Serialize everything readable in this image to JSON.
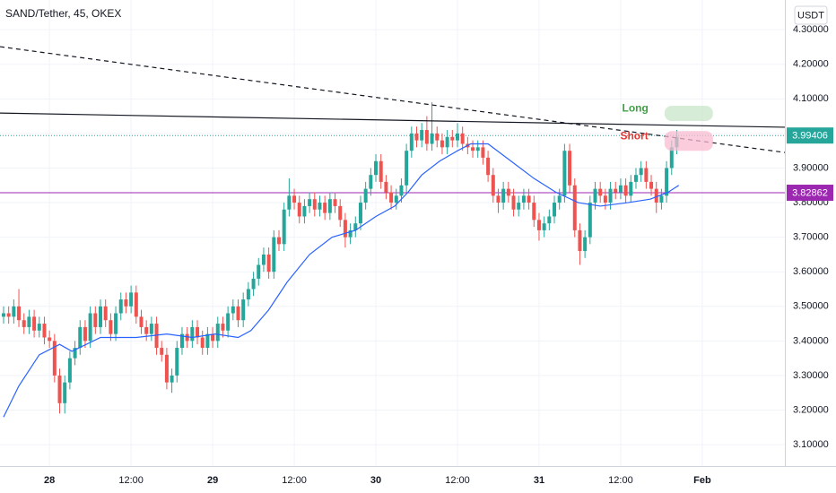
{
  "chart_data": {
    "type": "candlestick",
    "title": "SAND/Tether, 45, OKEX",
    "currency": "USDT",
    "up_color": "#26a69a",
    "down_color": "#ef5350",
    "grid": true,
    "xlim": [
      -9.7,
      144.2
    ],
    "ylim": [
      3.038,
      4.386
    ],
    "xticks": [
      {
        "value": 0,
        "label": "28"
      },
      {
        "value": 16,
        "label": "12:00"
      },
      {
        "value": 32,
        "label": "29"
      },
      {
        "value": 48,
        "label": "12:00"
      },
      {
        "value": 64,
        "label": "30"
      },
      {
        "value": 80,
        "label": "12:00"
      },
      {
        "value": 96,
        "label": "31"
      },
      {
        "value": 112,
        "label": "12:00"
      },
      {
        "value": 128,
        "label": "Feb"
      }
    ],
    "yticks": [
      {
        "value": 3.1,
        "label": "3.10000"
      },
      {
        "value": 3.2,
        "label": "3.20000"
      },
      {
        "value": 3.3,
        "label": "3.30000"
      },
      {
        "value": 3.4,
        "label": "3.40000"
      },
      {
        "value": 3.5,
        "label": "3.50000"
      },
      {
        "value": 3.6,
        "label": "3.60000"
      },
      {
        "value": 3.7,
        "label": "3.70000"
      },
      {
        "value": 3.8,
        "label": "3.80000"
      },
      {
        "value": 3.9,
        "label": "3.90000"
      },
      {
        "value": 4.0,
        "label": "4.00000"
      },
      {
        "value": 4.1,
        "label": "4.10000"
      },
      {
        "value": 4.2,
        "label": "4.20000"
      },
      {
        "value": 4.3,
        "label": "4.30000"
      }
    ],
    "x": [
      -9,
      -8,
      -7,
      -6,
      -5,
      -4,
      -3,
      -2,
      -1,
      0,
      1,
      2,
      3,
      4,
      5,
      6,
      7,
      8,
      9,
      10,
      11,
      12,
      13,
      14,
      15,
      16,
      17,
      18,
      19,
      20,
      21,
      22,
      23,
      24,
      25,
      26,
      27,
      28,
      29,
      30,
      31,
      32,
      33,
      34,
      35,
      36,
      37,
      38,
      39,
      40,
      41,
      42,
      43,
      44,
      45,
      46,
      47,
      48,
      49,
      50,
      51,
      52,
      53,
      54,
      55,
      56,
      57,
      58,
      59,
      60,
      61,
      62,
      63,
      64,
      65,
      66,
      67,
      68,
      69,
      70,
      71,
      72,
      73,
      74,
      75,
      76,
      77,
      78,
      79,
      80,
      81,
      82,
      83,
      84,
      85,
      86,
      87,
      88,
      89,
      90,
      91,
      92,
      93,
      94,
      95,
      96,
      97,
      98,
      99,
      100,
      101,
      102,
      103,
      104,
      105,
      106,
      107,
      108,
      109,
      110,
      111,
      112,
      113,
      114,
      115,
      116,
      117,
      118,
      119,
      120,
      121,
      122,
      123
    ],
    "open": [
      3.47,
      3.48,
      3.47,
      3.5,
      3.46,
      3.44,
      3.47,
      3.43,
      3.45,
      3.41,
      3.4,
      3.3,
      3.22,
      3.28,
      3.35,
      3.38,
      3.44,
      3.4,
      3.48,
      3.44,
      3.5,
      3.46,
      3.42,
      3.48,
      3.52,
      3.5,
      3.54,
      3.47,
      3.44,
      3.42,
      3.45,
      3.38,
      3.36,
      3.28,
      3.3,
      3.38,
      3.42,
      3.4,
      3.44,
      3.41,
      3.38,
      3.42,
      3.4,
      3.45,
      3.43,
      3.48,
      3.5,
      3.46,
      3.52,
      3.55,
      3.58,
      3.62,
      3.65,
      3.6,
      3.7,
      3.68,
      3.78,
      3.82,
      3.8,
      3.76,
      3.79,
      3.81,
      3.78,
      3.8,
      3.77,
      3.81,
      3.79,
      3.75,
      3.7,
      3.72,
      3.74,
      3.8,
      3.84,
      3.88,
      3.92,
      3.86,
      3.83,
      3.8,
      3.82,
      3.85,
      3.95,
      4.0,
      3.98,
      4.01,
      3.97,
      4.0,
      3.98,
      3.96,
      3.99,
      3.98,
      4.0,
      3.97,
      3.96,
      3.95,
      3.96,
      3.93,
      3.88,
      3.82,
      3.8,
      3.84,
      3.82,
      3.78,
      3.8,
      3.82,
      3.8,
      3.75,
      3.72,
      3.74,
      3.76,
      3.8,
      3.82,
      3.95,
      3.85,
      3.72,
      3.66,
      3.7,
      3.8,
      3.84,
      3.82,
      3.8,
      3.84,
      3.83,
      3.85,
      3.82,
      3.86,
      3.88,
      3.9,
      3.86,
      3.84,
      3.8,
      3.82,
      3.9,
      3.96
    ],
    "high": [
      3.5,
      3.5,
      3.52,
      3.55,
      3.48,
      3.49,
      3.49,
      3.47,
      3.47,
      3.43,
      3.42,
      3.32,
      3.3,
      3.37,
      3.4,
      3.46,
      3.46,
      3.5,
      3.5,
      3.52,
      3.52,
      3.48,
      3.5,
      3.54,
      3.54,
      3.56,
      3.56,
      3.49,
      3.46,
      3.47,
      3.47,
      3.4,
      3.38,
      3.32,
      3.4,
      3.44,
      3.44,
      3.46,
      3.46,
      3.43,
      3.44,
      3.44,
      3.47,
      3.47,
      3.5,
      3.52,
      3.52,
      3.54,
      3.57,
      3.6,
      3.64,
      3.67,
      3.67,
      3.72,
      3.72,
      3.8,
      3.87,
      3.84,
      3.82,
      3.81,
      3.83,
      3.83,
      3.82,
      3.82,
      3.83,
      3.83,
      3.81,
      3.77,
      3.74,
      3.76,
      3.82,
      3.86,
      3.9,
      3.94,
      3.94,
      3.88,
      3.85,
      3.84,
      3.87,
      3.97,
      4.02,
      4.02,
      4.03,
      4.05,
      4.09,
      4.02,
      4.0,
      4.01,
      4.01,
      4.03,
      4.02,
      3.99,
      3.98,
      3.98,
      3.98,
      3.95,
      3.9,
      3.84,
      3.86,
      3.86,
      3.84,
      3.82,
      3.84,
      3.84,
      3.82,
      3.77,
      3.76,
      3.78,
      3.82,
      3.84,
      3.97,
      3.97,
      3.87,
      3.74,
      3.72,
      3.82,
      3.86,
      3.86,
      3.84,
      3.86,
      3.86,
      3.87,
      3.87,
      3.88,
      3.9,
      3.92,
      3.92,
      3.88,
      3.86,
      3.84,
      3.92,
      3.98,
      4.01
    ],
    "low": [
      3.45,
      3.45,
      3.45,
      3.44,
      3.42,
      3.42,
      3.41,
      3.41,
      3.39,
      3.38,
      3.28,
      3.19,
      3.19,
      3.26,
      3.33,
      3.36,
      3.38,
      3.38,
      3.42,
      3.42,
      3.44,
      3.4,
      3.4,
      3.46,
      3.48,
      3.48,
      3.45,
      3.42,
      3.4,
      3.4,
      3.36,
      3.34,
      3.26,
      3.25,
      3.28,
      3.36,
      3.38,
      3.38,
      3.39,
      3.36,
      3.36,
      3.38,
      3.38,
      3.41,
      3.41,
      3.46,
      3.44,
      3.44,
      3.5,
      3.53,
      3.56,
      3.6,
      3.58,
      3.58,
      3.66,
      3.66,
      3.76,
      3.78,
      3.74,
      3.74,
      3.77,
      3.76,
      3.76,
      3.75,
      3.75,
      3.77,
      3.73,
      3.67,
      3.68,
      3.7,
      3.72,
      3.78,
      3.82,
      3.86,
      3.84,
      3.81,
      3.78,
      3.78,
      3.8,
      3.83,
      3.93,
      3.96,
      3.96,
      3.95,
      3.95,
      3.96,
      3.94,
      3.94,
      3.96,
      3.96,
      3.95,
      3.94,
      3.93,
      3.93,
      3.91,
      3.86,
      3.8,
      3.77,
      3.78,
      3.8,
      3.76,
      3.76,
      3.78,
      3.78,
      3.73,
      3.69,
      3.7,
      3.72,
      3.74,
      3.78,
      3.8,
      3.83,
      3.7,
      3.62,
      3.64,
      3.68,
      3.78,
      3.8,
      3.78,
      3.78,
      3.81,
      3.81,
      3.8,
      3.8,
      3.84,
      3.86,
      3.84,
      3.82,
      3.77,
      3.78,
      3.8,
      3.88,
      3.94
    ],
    "close": [
      3.48,
      3.47,
      3.5,
      3.46,
      3.44,
      3.47,
      3.43,
      3.45,
      3.41,
      3.4,
      3.3,
      3.22,
      3.28,
      3.35,
      3.38,
      3.44,
      3.4,
      3.48,
      3.44,
      3.5,
      3.46,
      3.42,
      3.48,
      3.52,
      3.5,
      3.54,
      3.47,
      3.44,
      3.42,
      3.45,
      3.38,
      3.36,
      3.28,
      3.3,
      3.38,
      3.42,
      3.4,
      3.44,
      3.41,
      3.38,
      3.42,
      3.4,
      3.45,
      3.43,
      3.48,
      3.5,
      3.46,
      3.52,
      3.55,
      3.58,
      3.62,
      3.65,
      3.6,
      3.7,
      3.68,
      3.78,
      3.82,
      3.8,
      3.76,
      3.79,
      3.81,
      3.78,
      3.8,
      3.77,
      3.81,
      3.79,
      3.75,
      3.7,
      3.72,
      3.74,
      3.8,
      3.84,
      3.88,
      3.92,
      3.86,
      3.83,
      3.8,
      3.82,
      3.85,
      3.95,
      4.0,
      3.98,
      4.01,
      3.97,
      4.0,
      3.98,
      3.96,
      3.99,
      3.98,
      4.0,
      3.97,
      3.96,
      3.95,
      3.96,
      3.93,
      3.88,
      3.82,
      3.8,
      3.84,
      3.82,
      3.78,
      3.8,
      3.82,
      3.8,
      3.75,
      3.72,
      3.74,
      3.76,
      3.8,
      3.82,
      3.95,
      3.85,
      3.72,
      3.66,
      3.7,
      3.8,
      3.84,
      3.82,
      3.8,
      3.84,
      3.83,
      3.85,
      3.82,
      3.86,
      3.88,
      3.9,
      3.86,
      3.84,
      3.8,
      3.82,
      3.9,
      3.96,
      3.99
    ],
    "moving_average": {
      "color": "#2962ff",
      "x": [
        -9,
        -6,
        -2,
        2,
        4.4,
        10,
        17,
        23,
        28,
        32.5,
        37,
        39.5,
        43,
        46.6,
        51,
        55.4,
        60,
        64,
        67.7,
        70.3,
        73,
        76.5,
        80,
        82.6,
        86,
        90.5,
        95,
        99.3,
        103.7,
        108,
        113.4,
        117.8,
        121.3,
        123.4
      ],
      "values": [
        3.18,
        3.27,
        3.36,
        3.39,
        3.37,
        3.41,
        3.41,
        3.42,
        3.41,
        3.42,
        3.41,
        3.43,
        3.49,
        3.57,
        3.65,
        3.7,
        3.72,
        3.76,
        3.79,
        3.83,
        3.88,
        3.92,
        3.95,
        3.97,
        3.97,
        3.92,
        3.87,
        3.83,
        3.8,
        3.79,
        3.8,
        3.81,
        3.83,
        3.85
      ]
    },
    "trendlines": [
      {
        "style": "solid",
        "color": "#131722",
        "x": [
          -9.7,
          144.2
        ],
        "values": [
          4.059,
          4.018
        ]
      },
      {
        "style": "dashed",
        "color": "#131722",
        "x": [
          -9.7,
          144.2
        ],
        "values": [
          4.251,
          3.945
        ]
      }
    ],
    "price_lines": [
      {
        "value": 3.99406,
        "color": "#26a69a",
        "style": "dotted"
      },
      {
        "value": 3.82862,
        "color": "#9c27b0",
        "style": "solid"
      }
    ],
    "zones": [
      {
        "text": "Long",
        "color": "#43a047",
        "fill": "#c8e6c9",
        "x": [
          120.6,
          130.1
        ],
        "values": [
          4.08,
          4.036
        ]
      },
      {
        "text": "Short",
        "color": "#e53935",
        "fill": "#f8bbd0",
        "x": [
          120.6,
          130.1
        ],
        "values": [
          4.007,
          3.95
        ]
      }
    ]
  }
}
